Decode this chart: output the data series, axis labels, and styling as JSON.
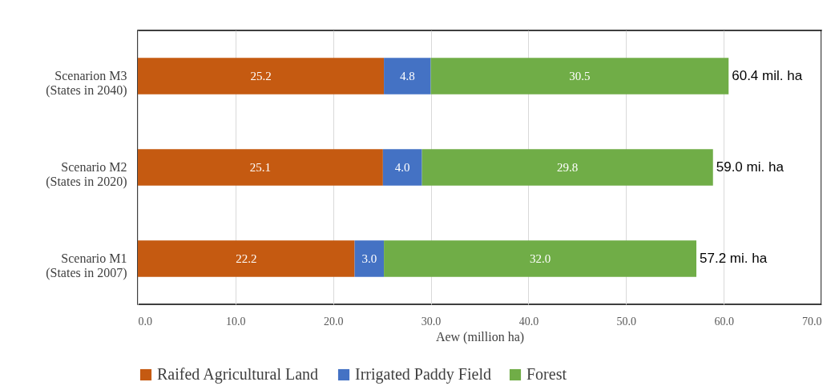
{
  "chart_data": {
    "type": "bar",
    "orientation": "horizontal",
    "stacked": true,
    "xlabel": "Aew (million ha)",
    "categories": [
      "Scenarion M3\n(States in 2040)",
      "Scenario M2\n(States in 2020)",
      "Scenario M1\n(States in 2007)"
    ],
    "series": [
      {
        "name": "Raifed Agricultural Land",
        "color": "#c55a11",
        "values": [
          25.2,
          25.1,
          22.2
        ],
        "value_labels": [
          "25.2",
          "25.1",
          "22.2"
        ]
      },
      {
        "name": "Irrigated Paddy Field",
        "color": "#4472c4",
        "values": [
          4.8,
          4.0,
          3.0
        ],
        "value_labels": [
          "4.8",
          "4.0",
          "3.0"
        ]
      },
      {
        "name": "Forest",
        "color": "#70ad47",
        "values": [
          30.5,
          29.8,
          32.0
        ],
        "value_labels": [
          "30.5",
          "29.8",
          "32.0"
        ]
      }
    ],
    "totals": [
      "60.4 mil. ha",
      "59.0 mi. ha",
      "57.2 mi. ha"
    ],
    "xlim": [
      0,
      70
    ],
    "xticks": [
      {
        "value": 0,
        "label": "0.0"
      },
      {
        "value": 10,
        "label": "10.0"
      },
      {
        "value": 20,
        "label": "20.0"
      },
      {
        "value": 30,
        "label": "30.0"
      },
      {
        "value": 40,
        "label": "40.0"
      },
      {
        "value": 50,
        "label": "50.0"
      },
      {
        "value": 60,
        "label": "60.0"
      },
      {
        "value": 70,
        "label": "70.0"
      }
    ],
    "grid": "x",
    "legend": "bottom"
  }
}
